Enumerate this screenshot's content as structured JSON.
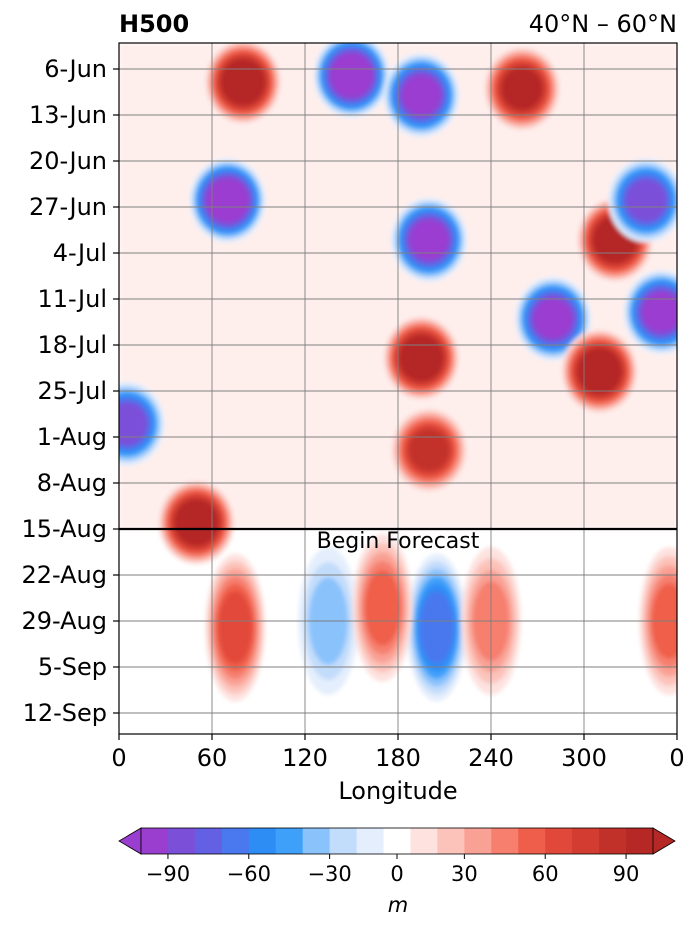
{
  "chart_data": {
    "type": "heatmap",
    "title_left": "H500",
    "title_right": "40°N – 60°N",
    "xlabel": "Longitude",
    "ylabel": "",
    "x_ticks": [
      "0",
      "60",
      "120",
      "180",
      "240",
      "300",
      "0"
    ],
    "x_tick_values": [
      0,
      60,
      120,
      180,
      240,
      300,
      360
    ],
    "x_range": [
      0,
      360
    ],
    "y_ticks": [
      "6-Jun",
      "13-Jun",
      "20-Jun",
      "27-Jun",
      "4-Jul",
      "11-Jul",
      "18-Jul",
      "25-Jul",
      "1-Aug",
      "8-Aug",
      "15-Aug",
      "22-Aug",
      "29-Aug",
      "5-Sep",
      "12-Sep"
    ],
    "y_range_days": "about 3-Jun to about 15-Sep, time increasing downward",
    "forecast_line": {
      "date": "15-Aug",
      "label": "Begin Forecast"
    },
    "grid": true,
    "colorbar": {
      "label": "m",
      "ticks": [
        "−90",
        "−60",
        "−30",
        "0",
        "30",
        "60",
        "90"
      ],
      "tick_values": [
        -90,
        -60,
        -30,
        0,
        30,
        60,
        90
      ],
      "levels": [
        -100,
        -90,
        -80,
        -70,
        -60,
        -50,
        -40,
        -30,
        -20,
        -10,
        10,
        20,
        30,
        40,
        50,
        60,
        70,
        80,
        90,
        100
      ],
      "colors": [
        "#9a3ed0",
        "#7c4fd9",
        "#6360e3",
        "#4a78ee",
        "#2e8cf5",
        "#3fa0fa",
        "#8ac2fb",
        "#c2dcfb",
        "#e4eefc",
        "#ffffff",
        "#fde2df",
        "#fcc3ba",
        "#f9a195",
        "#f67f6e",
        "#ef5e4a",
        "#e2483a",
        "#d23c31",
        "#c23129",
        "#b52825"
      ],
      "extend": "both",
      "orientation": "horizontal"
    },
    "field_features": [
      {
        "lon": 150,
        "date": "7-Jun",
        "value": -100
      },
      {
        "lon": 195,
        "date": "10-Jun",
        "value": -90
      },
      {
        "lon": 80,
        "date": "8-Jun",
        "value": 95
      },
      {
        "lon": 260,
        "date": "9-Jun",
        "value": 90
      },
      {
        "lon": 70,
        "date": "26-Jun",
        "value": -95
      },
      {
        "lon": 200,
        "date": "2-Jul",
        "value": -90
      },
      {
        "lon": 320,
        "date": "2-Jul",
        "value": 100
      },
      {
        "lon": 340,
        "date": "26-Jun",
        "value": -80
      },
      {
        "lon": 280,
        "date": "14-Jul",
        "value": -90
      },
      {
        "lon": 350,
        "date": "13-Jul",
        "value": -90
      },
      {
        "lon": 195,
        "date": "20-Jul",
        "value": 95
      },
      {
        "lon": 310,
        "date": "22-Jul",
        "value": 100
      },
      {
        "lon": 5,
        "date": "30-Jul",
        "value": -80
      },
      {
        "lon": 50,
        "date": "14-Aug",
        "value": 95
      },
      {
        "lon": 200,
        "date": "3-Aug",
        "value": 80
      },
      {
        "lon": 75,
        "date": "30-Aug",
        "value": 60
      },
      {
        "lon": 205,
        "date": "30-Aug",
        "value": -60
      },
      {
        "lon": 135,
        "date": "29-Aug",
        "value": -25
      },
      {
        "lon": 170,
        "date": "27-Aug",
        "value": 50
      },
      {
        "lon": 240,
        "date": "29-Aug",
        "value": 40
      },
      {
        "lon": 355,
        "date": "29-Aug",
        "value": 50
      }
    ]
  }
}
